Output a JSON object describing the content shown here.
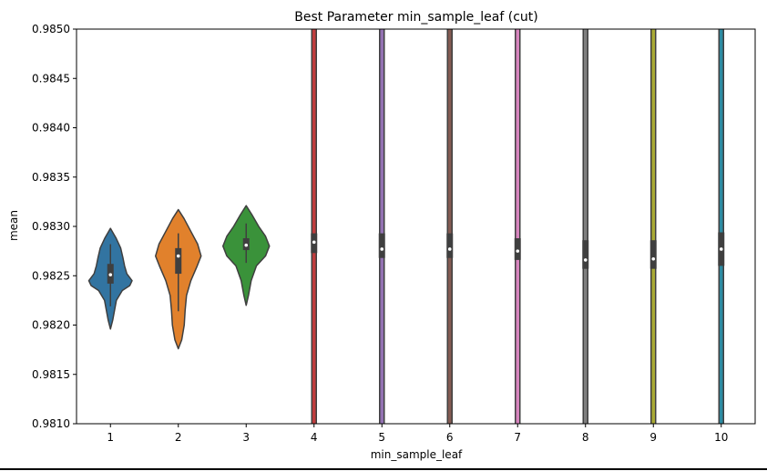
{
  "chart_data": {
    "type": "violin",
    "title": "Best Parameter min_sample_leaf (cut)",
    "xlabel": "min_sample_leaf",
    "ylabel": "mean",
    "ylim": [
      0.981,
      0.985
    ],
    "yticks": [
      "0.9810",
      "0.9815",
      "0.9820",
      "0.9825",
      "0.9830",
      "0.9835",
      "0.9840",
      "0.9845",
      "0.9850"
    ],
    "categories": [
      "1",
      "2",
      "3",
      "4",
      "5",
      "6",
      "7",
      "8",
      "9",
      "10"
    ],
    "series": [
      {
        "category": "1",
        "color": "#3274a1",
        "min": 0.98196,
        "q1": 0.98242,
        "median": 0.98251,
        "q3": 0.98262,
        "whisker_low": 0.98219,
        "whisker_high": 0.98282,
        "max": 0.98298,
        "clipped": false,
        "profile": [
          [
            0.98196,
            0.0
          ],
          [
            0.98205,
            0.1
          ],
          [
            0.98215,
            0.18
          ],
          [
            0.98225,
            0.26
          ],
          [
            0.98235,
            0.52
          ],
          [
            0.9824,
            0.85
          ],
          [
            0.98245,
            0.95
          ],
          [
            0.98252,
            0.72
          ],
          [
            0.9826,
            0.62
          ],
          [
            0.98268,
            0.55
          ],
          [
            0.98278,
            0.45
          ],
          [
            0.98288,
            0.25
          ],
          [
            0.98298,
            0.0
          ]
        ]
      },
      {
        "category": "2",
        "color": "#e1812c",
        "min": 0.98176,
        "q1": 0.98252,
        "median": 0.9827,
        "q3": 0.98278,
        "whisker_low": 0.98214,
        "whisker_high": 0.98293,
        "max": 0.98317,
        "clipped": false,
        "profile": [
          [
            0.98176,
            0.0
          ],
          [
            0.98185,
            0.15
          ],
          [
            0.982,
            0.26
          ],
          [
            0.98215,
            0.3
          ],
          [
            0.9823,
            0.36
          ],
          [
            0.98245,
            0.55
          ],
          [
            0.9826,
            0.83
          ],
          [
            0.9827,
            1.0
          ],
          [
            0.98282,
            0.85
          ],
          [
            0.98295,
            0.55
          ],
          [
            0.98308,
            0.25
          ],
          [
            0.98317,
            0.0
          ]
        ]
      },
      {
        "category": "3",
        "color": "#3a923a",
        "min": 0.9822,
        "q1": 0.98276,
        "median": 0.98281,
        "q3": 0.98288,
        "whisker_low": 0.98263,
        "whisker_high": 0.98303,
        "max": 0.98321,
        "clipped": false,
        "profile": [
          [
            0.9822,
            0.0
          ],
          [
            0.9823,
            0.1
          ],
          [
            0.98245,
            0.22
          ],
          [
            0.9826,
            0.45
          ],
          [
            0.9827,
            0.85
          ],
          [
            0.9828,
            1.02
          ],
          [
            0.9829,
            0.85
          ],
          [
            0.983,
            0.55
          ],
          [
            0.98312,
            0.25
          ],
          [
            0.98321,
            0.0
          ]
        ]
      },
      {
        "category": "4",
        "color": "#c03d3e",
        "q1": 0.98273,
        "median": 0.98284,
        "q3": 0.98293,
        "clipped": true
      },
      {
        "category": "5",
        "color": "#9372b2",
        "q1": 0.98268,
        "median": 0.98277,
        "q3": 0.98293,
        "clipped": true
      },
      {
        "category": "6",
        "color": "#845b53",
        "q1": 0.98268,
        "median": 0.98277,
        "q3": 0.98293,
        "clipped": true
      },
      {
        "category": "7",
        "color": "#d684bd",
        "q1": 0.98266,
        "median": 0.98275,
        "q3": 0.98288,
        "clipped": true
      },
      {
        "category": "8",
        "color": "#7f7f7f",
        "q1": 0.98257,
        "median": 0.98266,
        "q3": 0.98286,
        "clipped": true
      },
      {
        "category": "9",
        "color": "#a9aa35",
        "q1": 0.98257,
        "median": 0.98267,
        "q3": 0.98286,
        "clipped": true
      },
      {
        "category": "10",
        "color": "#2d8ba2",
        "q1": 0.9826,
        "median": 0.98277,
        "q3": 0.98294,
        "clipped": true
      }
    ],
    "grid": false,
    "legend": "none"
  }
}
